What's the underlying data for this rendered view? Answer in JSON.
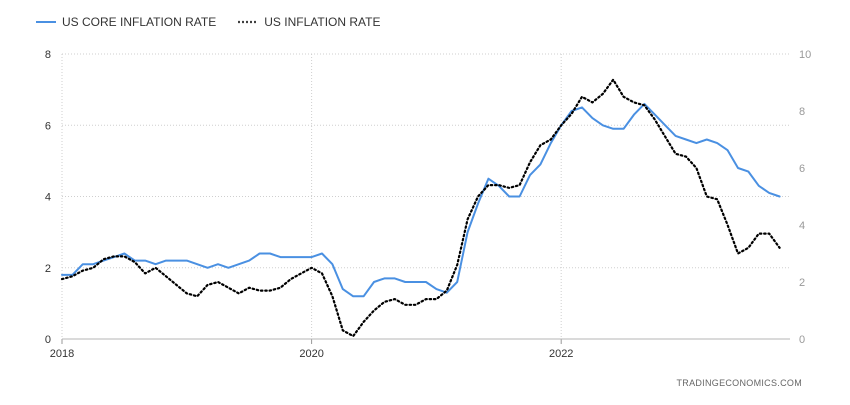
{
  "chart_data": {
    "type": "line",
    "legend": {
      "position": "top-left"
    },
    "grid": true,
    "watermark": "TRADINGECONOMICS.COM",
    "x_axis": {
      "type": "time",
      "range": [
        "2018-01",
        "2023-11"
      ],
      "tick_labels": [
        "2018",
        "2020",
        "2022"
      ]
    },
    "y_axis_left": {
      "range": [
        0,
        8
      ],
      "tick_labels": [
        "0",
        "2",
        "4",
        "6",
        "8"
      ]
    },
    "y_axis_right": {
      "range": [
        0,
        10
      ],
      "tick_labels": [
        "0",
        "2",
        "4",
        "6",
        "8",
        "10"
      ]
    },
    "series": [
      {
        "name": "US CORE INFLATION RATE",
        "axis": "left",
        "color": "#4a90e2",
        "style": "solid",
        "start": "2018-01",
        "values": [
          1.8,
          1.8,
          2.1,
          2.1,
          2.2,
          2.3,
          2.4,
          2.2,
          2.2,
          2.1,
          2.2,
          2.2,
          2.2,
          2.1,
          2.0,
          2.1,
          2.0,
          2.1,
          2.2,
          2.4,
          2.4,
          2.3,
          2.3,
          2.3,
          2.3,
          2.4,
          2.1,
          1.4,
          1.2,
          1.2,
          1.6,
          1.7,
          1.7,
          1.6,
          1.6,
          1.6,
          1.4,
          1.3,
          1.6,
          3.0,
          3.8,
          4.5,
          4.3,
          4.0,
          4.0,
          4.6,
          4.9,
          5.5,
          6.0,
          6.4,
          6.5,
          6.2,
          6.0,
          5.9,
          5.9,
          6.3,
          6.6,
          6.3,
          6.0,
          5.7,
          5.6,
          5.5,
          5.6,
          5.5,
          5.3,
          4.8,
          4.7,
          4.3,
          4.1,
          4.0
        ]
      },
      {
        "name": "US INFLATION RATE",
        "axis": "right",
        "color": "#000000",
        "style": "dotted",
        "start": "2018-01",
        "values": [
          2.1,
          2.2,
          2.4,
          2.5,
          2.8,
          2.9,
          2.9,
          2.7,
          2.3,
          2.5,
          2.2,
          1.9,
          1.6,
          1.5,
          1.9,
          2.0,
          1.8,
          1.6,
          1.8,
          1.7,
          1.7,
          1.8,
          2.1,
          2.3,
          2.5,
          2.3,
          1.5,
          0.3,
          0.1,
          0.6,
          1.0,
          1.3,
          1.4,
          1.2,
          1.2,
          1.4,
          1.4,
          1.7,
          2.6,
          4.2,
          5.0,
          5.4,
          5.4,
          5.3,
          5.4,
          6.2,
          6.8,
          7.0,
          7.5,
          7.9,
          8.5,
          8.3,
          8.6,
          9.1,
          8.5,
          8.3,
          8.2,
          7.7,
          7.1,
          6.5,
          6.4,
          6.0,
          5.0,
          4.9,
          4.0,
          3.0,
          3.2,
          3.7,
          3.7,
          3.2
        ]
      }
    ]
  }
}
